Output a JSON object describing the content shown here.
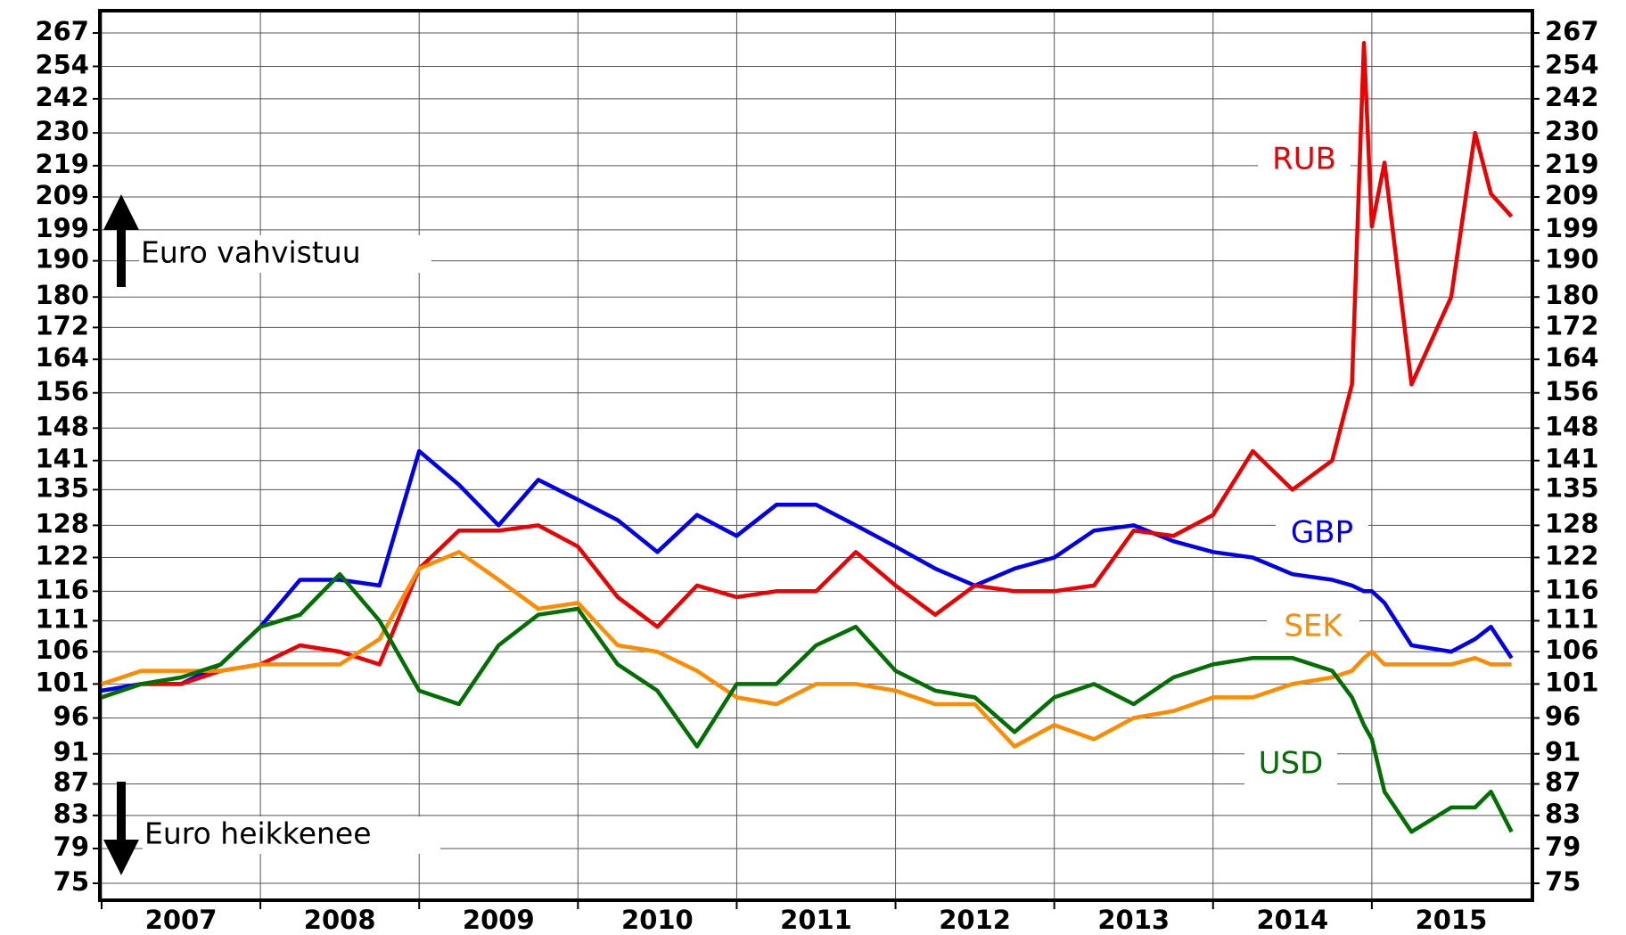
{
  "chart_data": {
    "type": "line",
    "x": [
      2007,
      2007.25,
      2007.5,
      2007.75,
      2008,
      2008.25,
      2008.5,
      2008.75,
      2009,
      2009.25,
      2009.5,
      2009.75,
      2010,
      2010.25,
      2010.5,
      2010.75,
      2011,
      2011.25,
      2011.5,
      2011.75,
      2012,
      2012.25,
      2012.5,
      2012.75,
      2013,
      2013.25,
      2013.5,
      2013.75,
      2014,
      2014.25,
      2014.5,
      2014.75,
      2014.875,
      2014.95,
      2015,
      2015.08,
      2015.25,
      2015.5,
      2015.65,
      2015.75,
      2015.88
    ],
    "series": [
      {
        "name": "GBP",
        "color": "#0000ee",
        "values": [
          100,
          101,
          101,
          104,
          110,
          118,
          118,
          117,
          143,
          136,
          128,
          137,
          133,
          129,
          123,
          130,
          126,
          132,
          132,
          128,
          124,
          120,
          117,
          120,
          122,
          127,
          128,
          125,
          123,
          122,
          119,
          118,
          117,
          116,
          116,
          114,
          107,
          106,
          108,
          110,
          105
        ]
      },
      {
        "name": "RUB",
        "color": "#ee0000",
        "values": [
          99,
          101,
          101,
          103,
          104,
          107,
          106,
          104,
          120,
          127,
          127,
          128,
          124,
          115,
          110,
          117,
          115,
          116,
          116,
          123,
          117,
          112,
          117,
          116,
          116,
          117,
          127,
          126,
          130,
          143,
          135,
          141,
          158,
          263,
          200,
          220,
          158,
          180,
          230,
          210,
          203
        ]
      },
      {
        "name": "SEK",
        "color": "#ff8c00",
        "values": [
          101,
          103,
          103,
          103,
          104,
          104,
          104,
          108,
          120,
          123,
          118,
          113,
          114,
          107,
          106,
          103,
          99,
          98,
          101,
          101,
          100,
          98,
          98,
          92,
          95,
          93,
          96,
          97,
          99,
          99,
          101,
          102,
          103,
          105,
          106,
          104,
          104,
          104,
          105,
          104,
          104
        ]
      },
      {
        "name": "USD",
        "color": "#007000",
        "values": [
          99,
          101,
          102,
          104,
          110,
          112,
          119,
          111,
          100,
          98,
          107,
          112,
          113,
          104,
          100,
          92,
          101,
          101,
          107,
          110,
          103,
          100,
          99,
          94,
          99,
          101,
          98,
          102,
          104,
          105,
          105,
          103,
          99,
          95,
          93,
          86,
          81,
          84,
          84,
          86,
          81
        ]
      }
    ],
    "annotations": [
      "Euro vahvistuu",
      "Euro heikkenee"
    ],
    "xlim": [
      2007,
      2016
    ],
    "xticks": [
      2007,
      2008,
      2009,
      2010,
      2011,
      2012,
      2013,
      2014,
      2015
    ],
    "ylim": [
      75,
      267
    ],
    "yticks": [
      75,
      79,
      83,
      87,
      91,
      96,
      101,
      106,
      111,
      116,
      122,
      128,
      135,
      141,
      148,
      156,
      164,
      172,
      180,
      190,
      199,
      209,
      219,
      230,
      242,
      254,
      267
    ],
    "yscale": "log",
    "grid": true
  }
}
